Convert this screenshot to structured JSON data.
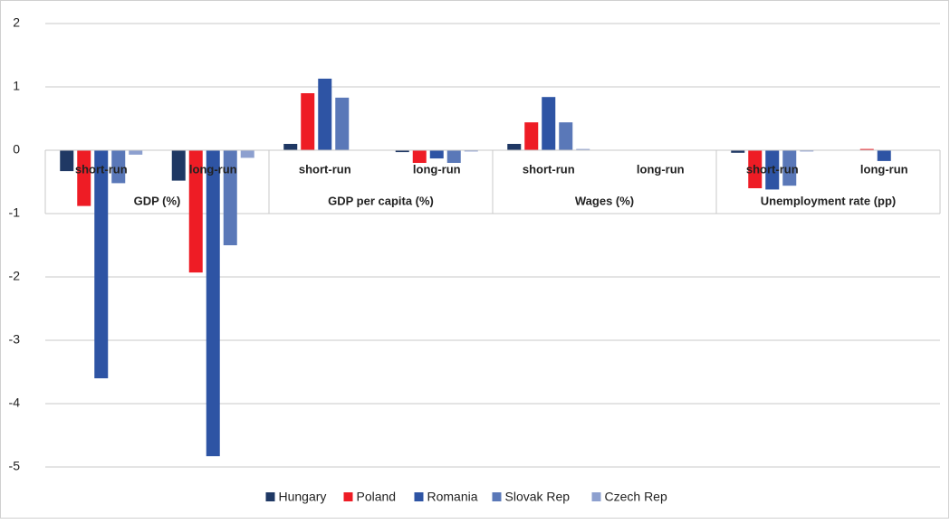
{
  "chart_data": {
    "type": "bar",
    "groups": [
      "GDP (%)",
      "GDP per capita (%)",
      "Wages (%)",
      "Unemployment rate (pp)"
    ],
    "categories": [
      "short-run",
      "long-run",
      "short-run",
      "long-run",
      "short-run",
      "long-run",
      "short-run",
      "long-run"
    ],
    "series": [
      {
        "name": "Hungary",
        "color": "#1f3864",
        "values": [
          -0.33,
          -0.48,
          0.1,
          -0.03,
          0.1,
          0,
          -0.04,
          0
        ]
      },
      {
        "name": "Poland",
        "color": "#ee1c25",
        "values": [
          -0.88,
          -1.93,
          0.9,
          -0.2,
          0.44,
          0,
          -0.6,
          0.02
        ]
      },
      {
        "name": "Romania",
        "color": "#2e54a4",
        "values": [
          -3.6,
          -4.83,
          1.13,
          -0.13,
          0.84,
          0,
          -0.62,
          -0.17
        ]
      },
      {
        "name": "Slovak Rep",
        "color": "#5a78b8",
        "values": [
          -0.52,
          -1.5,
          0.83,
          -0.2,
          0.44,
          0,
          -0.56,
          0
        ]
      },
      {
        "name": "Czech Rep",
        "color": "#8da0cf",
        "values": [
          -0.07,
          -0.12,
          0,
          -0.02,
          0.02,
          0,
          -0.02,
          0
        ]
      }
    ],
    "ylim": [
      -5,
      2
    ],
    "yticks": [
      -5,
      -4,
      -3,
      -2,
      -1,
      0,
      1,
      2
    ],
    "grid": true,
    "legend": "bottom"
  }
}
